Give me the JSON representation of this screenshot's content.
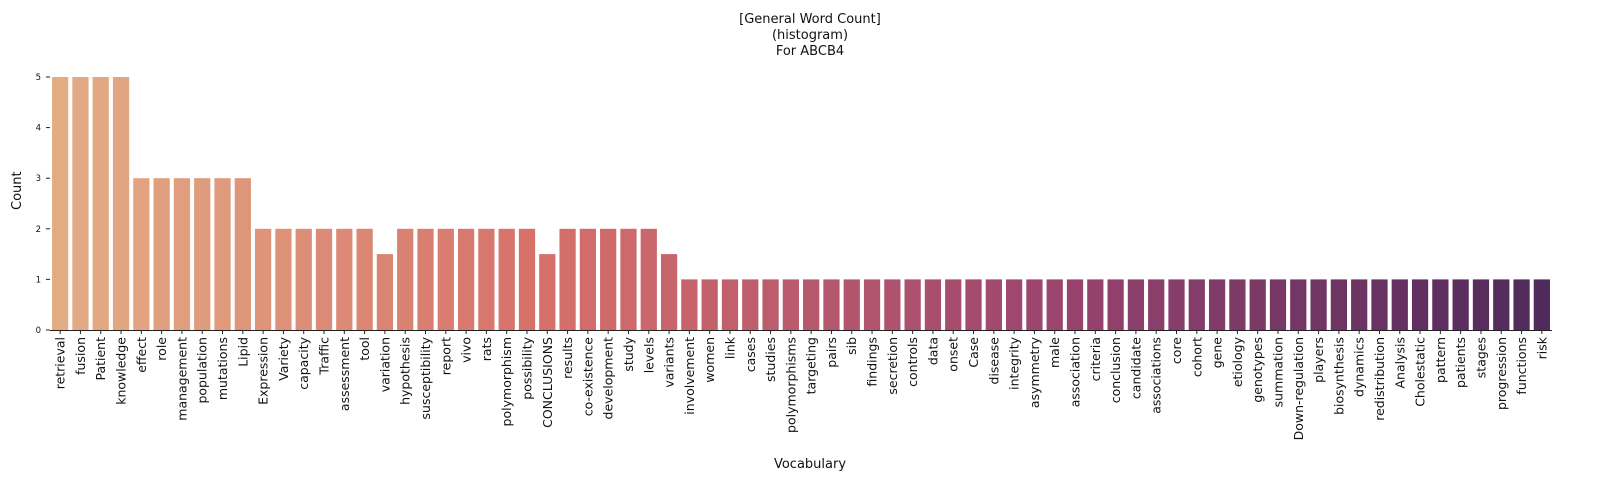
{
  "chart_data": {
    "type": "bar",
    "title_lines": [
      "[General Word Count]",
      "(histogram)",
      "For ABCB4"
    ],
    "xlabel": "Vocabulary",
    "ylabel": "Count",
    "ylim": [
      0,
      5
    ],
    "yticks": [
      0,
      1,
      2,
      3,
      4,
      5
    ],
    "grid": false,
    "legend": "none",
    "categories": [
      "retrieval",
      "fusion",
      "Patient",
      "knowledge",
      "effect",
      "role",
      "management",
      "population",
      "mutations",
      "Lipid",
      "Expression",
      "Variety",
      "capacity",
      "Traffic",
      "assessment",
      "tool",
      "variation",
      "hypothesis",
      "susceptibility",
      "report",
      "vivo",
      "rats",
      "polymorphism",
      "possibility",
      "CONCLUSIONS",
      "results",
      "co-existence",
      "development",
      "study",
      "levels",
      "variants",
      "involvement",
      "women",
      "link",
      "cases",
      "studies",
      "polymorphisms",
      "targeting",
      "pairs",
      "sib",
      "findings",
      "secretion",
      "controls",
      "data",
      "onset",
      "Case",
      "disease",
      "integrity",
      "asymmetry",
      "male",
      "association",
      "criteria",
      "conclusion",
      "candidate",
      "associations",
      "core",
      "cohort",
      "gene",
      "etiology",
      "genotypes",
      "summation",
      "Down-regulation",
      "players",
      "biosynthesis",
      "dynamics",
      "redistribution",
      "Analysis",
      "Cholestatic",
      "pattern",
      "patients",
      "stages",
      "progression",
      "functions",
      "risk"
    ],
    "values": [
      5,
      5,
      5,
      5,
      3,
      3,
      3,
      3,
      3,
      3,
      2,
      2,
      2,
      2,
      2,
      2,
      1.5,
      2,
      2,
      2,
      2,
      2,
      2,
      2,
      1.5,
      2,
      2,
      2,
      2,
      2,
      1.5,
      1,
      1,
      1,
      1,
      1,
      1,
      1,
      1,
      1,
      1,
      1,
      1,
      1,
      1,
      1,
      1,
      1,
      1,
      1,
      1,
      1,
      1,
      1,
      1,
      1,
      1,
      1,
      1,
      1,
      1,
      1,
      1,
      1,
      1,
      1,
      1,
      1,
      1,
      1,
      1,
      1,
      1,
      1
    ],
    "palette": "flare",
    "color_start": "#e3ad84",
    "color_end": "#4f2a5c"
  }
}
